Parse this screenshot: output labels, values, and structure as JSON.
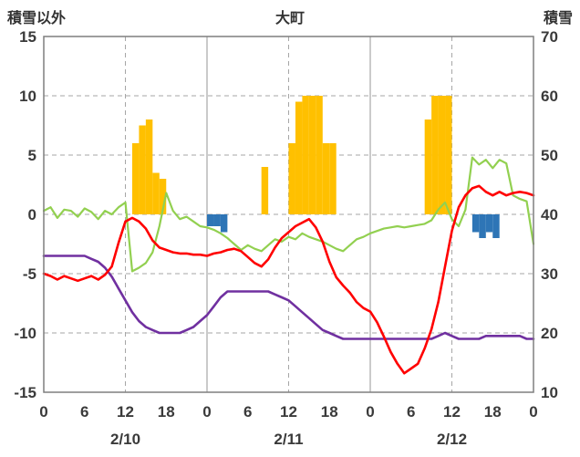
{
  "chart_data": {
    "type": "mixed",
    "title": "大町",
    "left_axis": {
      "title": "積雪以外",
      "min": -15,
      "max": 15,
      "ticks": [
        15,
        10,
        5,
        0,
        -5,
        -10,
        -15
      ]
    },
    "right_axis": {
      "title": "積雪",
      "min": 10,
      "max": 70,
      "ticks": [
        70,
        60,
        50,
        40,
        30,
        20,
        10
      ]
    },
    "x": {
      "unit": "hour",
      "min": 0,
      "max": 72,
      "tick_step": 6,
      "tick_labels": [
        "0",
        "6",
        "12",
        "18",
        "0",
        "6",
        "12",
        "18",
        "0",
        "6",
        "12",
        "18",
        "0"
      ],
      "day_labels": [
        {
          "text": "2/10",
          "hour": 12
        },
        {
          "text": "2/11",
          "hour": 36
        },
        {
          "text": "2/12",
          "hour": 60
        }
      ],
      "dashed_gridline_hours": [
        12,
        36,
        60
      ],
      "solid_gridline_hours": [
        24,
        48
      ]
    },
    "style": {
      "gridline": "#A6A6A6",
      "border": "#7F7F7F",
      "text": "#3A3A3A",
      "background": "#FFFFFF"
    },
    "series": [
      {
        "id": "orange-bars",
        "type": "bar",
        "axis": "left",
        "color": "#FFC000",
        "bars": [
          [
            13,
            6
          ],
          [
            14,
            7.5
          ],
          [
            15,
            8
          ],
          [
            16,
            3.5
          ],
          [
            17,
            3
          ],
          [
            32,
            4
          ],
          [
            36,
            6
          ],
          [
            37,
            9.5
          ],
          [
            38,
            10
          ],
          [
            39,
            10
          ],
          [
            40,
            10
          ],
          [
            41,
            6
          ],
          [
            42,
            6
          ],
          [
            56,
            8
          ],
          [
            57,
            10
          ],
          [
            58,
            10
          ],
          [
            59,
            10
          ]
        ]
      },
      {
        "id": "blue-bars",
        "type": "bar",
        "axis": "left",
        "color": "#2E75B6",
        "bars": [
          [
            24,
            -1
          ],
          [
            25,
            -1
          ],
          [
            26,
            -1.5
          ],
          [
            63,
            -1.5
          ],
          [
            64,
            -2
          ],
          [
            65,
            -1.5
          ],
          [
            66,
            -2
          ]
        ]
      },
      {
        "id": "green-line",
        "type": "line",
        "axis": "left",
        "color": "#92D050",
        "width": 2.2,
        "values": [
          0.3,
          0.6,
          -0.3,
          0.4,
          0.3,
          -0.2,
          0.5,
          0.2,
          -0.4,
          0.3,
          0,
          0.6,
          1,
          -4.8,
          -4.5,
          -4.1,
          -3.2,
          -1,
          1.8,
          0.3,
          -0.4,
          -0.2,
          -0.6,
          -1,
          -1.1,
          -1.3,
          -1.6,
          -2,
          -2.5,
          -3,
          -2.6,
          -2.9,
          -3.1,
          -2.6,
          -2.1,
          -2.3,
          -1.9,
          -2.1,
          -1.6,
          -1.9,
          -2.1,
          -2.3,
          -2.6,
          -2.9,
          -3.1,
          -2.6,
          -2.1,
          -1.9,
          -1.6,
          -1.4,
          -1.2,
          -1.1,
          -1,
          -1.1,
          -1,
          -0.9,
          -0.8,
          -0.5,
          0.4,
          1,
          -0.4,
          -1,
          0.4,
          4.8,
          4.2,
          4.6,
          3.9,
          4.6,
          4.3,
          1.6,
          1.3,
          1.1,
          -2.5
        ]
      },
      {
        "id": "purple-line",
        "type": "line",
        "axis": "right",
        "color": "#7030A0",
        "width": 2.6,
        "values": [
          33,
          33,
          33,
          33,
          33,
          33,
          33,
          32.5,
          32,
          31,
          29.5,
          27.5,
          25.5,
          23.5,
          22,
          21,
          20.5,
          20,
          20,
          20,
          20,
          20.5,
          21,
          22,
          23,
          24.5,
          26,
          27,
          27,
          27,
          27,
          27,
          27,
          27,
          26.5,
          26,
          25.5,
          24.5,
          23.5,
          22.5,
          21.5,
          20.5,
          20,
          19.5,
          19,
          19,
          19,
          19,
          19,
          19,
          19,
          19,
          19,
          19,
          19,
          19,
          19,
          19,
          19.5,
          20,
          19.5,
          19,
          19,
          19,
          19,
          19.5,
          19.5,
          19.5,
          19.5,
          19.5,
          19.5,
          19,
          19
        ]
      },
      {
        "id": "red-line",
        "type": "line",
        "axis": "left",
        "color": "#FF0000",
        "width": 2.6,
        "values": [
          -5,
          -5.2,
          -5.5,
          -5.2,
          -5.4,
          -5.6,
          -5.4,
          -5.2,
          -5.5,
          -5.1,
          -4.4,
          -2.4,
          -0.6,
          -0.3,
          -0.6,
          -1.2,
          -2.2,
          -2.8,
          -3,
          -3.2,
          -3.3,
          -3.3,
          -3.4,
          -3.4,
          -3.5,
          -3.3,
          -3.2,
          -3,
          -2.9,
          -3.1,
          -3.6,
          -4.1,
          -4.4,
          -3.8,
          -2.8,
          -2,
          -1.5,
          -1,
          -0.7,
          -0.4,
          -1.1,
          -2.3,
          -4,
          -5.3,
          -6,
          -6.6,
          -7.4,
          -7.9,
          -8.2,
          -9.1,
          -10.3,
          -11.6,
          -12.6,
          -13.4,
          -13,
          -12.6,
          -11.3,
          -9.7,
          -7.4,
          -4.4,
          -1.4,
          0.6,
          1.6,
          2.2,
          2.4,
          1.9,
          1.6,
          1.9,
          1.6,
          1.8,
          1.9,
          1.8,
          1.6
        ]
      }
    ]
  }
}
